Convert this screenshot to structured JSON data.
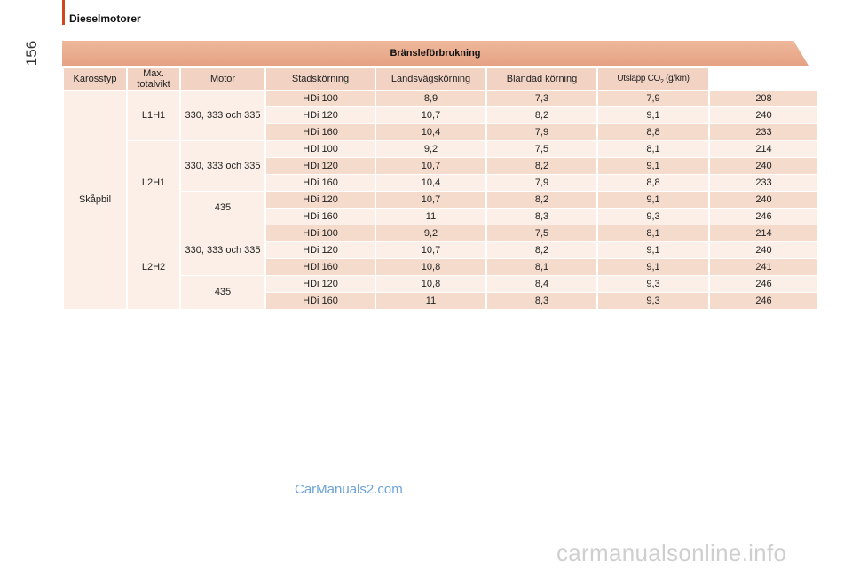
{
  "header": {
    "section_title": "Dieselmotorer",
    "page_number": "156"
  },
  "table": {
    "title": "Bränsleförbrukning",
    "columns": [
      "Karosstyp",
      "Max. totalvikt",
      "Motor",
      "Stadskörning",
      "Landsvägskörning",
      "Blandad körning"
    ],
    "co2_header": {
      "prefix": "Utsläpp CO",
      "sub": "2",
      "suffix": " (g/km)"
    },
    "body_type": "Skåpbil",
    "groups": [
      {
        "variant": "L1H1",
        "weights": [
          {
            "label": "330, 333 och 335",
            "rows": [
              [
                "HDi 100",
                "8,9",
                "7,3",
                "7,9",
                "208"
              ],
              [
                "HDi 120",
                "10,7",
                "8,2",
                "9,1",
                "240"
              ],
              [
                "HDi 160",
                "10,4",
                "7,9",
                "8,8",
                "233"
              ]
            ]
          }
        ]
      },
      {
        "variant": "L2H1",
        "weights": [
          {
            "label": "330, 333 och 335",
            "rows": [
              [
                "HDi 100",
                "9,2",
                "7,5",
                "8,1",
                "214"
              ],
              [
                "HDi 120",
                "10,7",
                "8,2",
                "9,1",
                "240"
              ],
              [
                "HDi 160",
                "10,4",
                "7,9",
                "8,8",
                "233"
              ]
            ]
          },
          {
            "label": "435",
            "rows": [
              [
                "HDi 120",
                "10,7",
                "8,2",
                "9,1",
                "240"
              ],
              [
                "HDi 160",
                "11",
                "8,3",
                "9,3",
                "246"
              ]
            ]
          }
        ]
      },
      {
        "variant": "L2H2",
        "weights": [
          {
            "label": "330, 333 och 335",
            "rows": [
              [
                "HDi 100",
                "9,2",
                "7,5",
                "8,1",
                "214"
              ],
              [
                "HDi 120",
                "10,7",
                "8,2",
                "9,1",
                "240"
              ],
              [
                "HDi 160",
                "10,8",
                "8,1",
                "9,1",
                "241"
              ]
            ]
          },
          {
            "label": "435",
            "rows": [
              [
                "HDi 120",
                "10,8",
                "8,4",
                "9,3",
                "246"
              ],
              [
                "HDi 160",
                "11",
                "8,3",
                "9,3",
                "246"
              ]
            ]
          }
        ]
      }
    ]
  },
  "watermarks": {
    "site": "CarManuals2.com",
    "footer": "carmanualsonline.info"
  },
  "colors": {
    "accent": "#d2461f",
    "title_band": "#e8a88a",
    "header_cell": "#f1d2c3",
    "row_dark": "#f5dbcc",
    "row_light": "#fbefe7"
  }
}
